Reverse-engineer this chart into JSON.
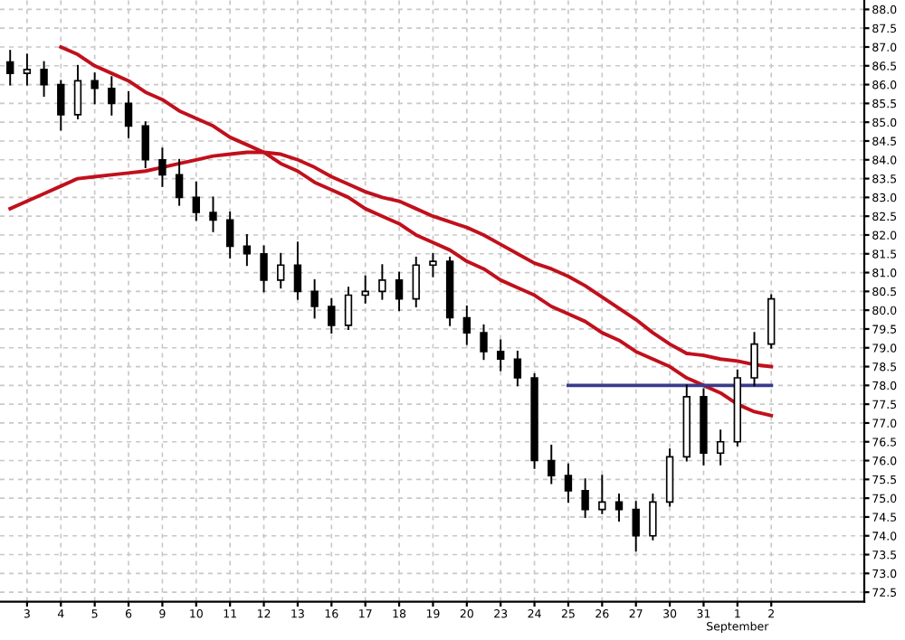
{
  "chart_data": {
    "type": "candlestick",
    "categories": [
      null,
      "3",
      null,
      "4",
      null,
      "5",
      null,
      "6",
      null,
      "9",
      null,
      "10",
      null,
      "11",
      null,
      "12",
      null,
      "13",
      null,
      "16",
      null,
      "17",
      null,
      "18",
      null,
      "19",
      null,
      "20",
      null,
      "23",
      null,
      "24",
      null,
      "25",
      null,
      "26",
      null,
      "27",
      null,
      "30",
      null,
      "31",
      null,
      "1\nSeptember",
      null,
      "2"
    ],
    "ohlc": [
      [
        86.6,
        86.9,
        86.0,
        86.3
      ],
      [
        86.3,
        86.8,
        86.0,
        86.4
      ],
      [
        86.4,
        86.6,
        85.7,
        86.0
      ],
      [
        86.0,
        86.1,
        84.8,
        85.2
      ],
      [
        85.2,
        86.5,
        85.1,
        86.1
      ],
      [
        86.1,
        86.3,
        85.5,
        85.9
      ],
      [
        85.9,
        86.2,
        85.2,
        85.5
      ],
      [
        85.5,
        85.8,
        84.6,
        84.9
      ],
      [
        84.9,
        85.0,
        83.8,
        84.0
      ],
      [
        84.0,
        84.3,
        83.3,
        83.6
      ],
      [
        83.6,
        84.0,
        82.8,
        83.0
      ],
      [
        83.0,
        83.4,
        82.4,
        82.6
      ],
      [
        82.6,
        83.0,
        82.1,
        82.4
      ],
      [
        82.4,
        82.6,
        81.4,
        81.7
      ],
      [
        81.7,
        82.0,
        81.2,
        81.5
      ],
      [
        81.5,
        81.7,
        80.5,
        80.8
      ],
      [
        80.8,
        81.5,
        80.6,
        81.2
      ],
      [
        81.2,
        81.8,
        80.3,
        80.5
      ],
      [
        80.5,
        80.8,
        79.8,
        80.1
      ],
      [
        80.1,
        80.3,
        79.4,
        79.6
      ],
      [
        79.6,
        80.6,
        79.5,
        80.4
      ],
      [
        80.4,
        80.9,
        80.2,
        80.5
      ],
      [
        80.5,
        81.2,
        80.3,
        80.8
      ],
      [
        80.8,
        81.0,
        80.0,
        80.3
      ],
      [
        80.3,
        81.4,
        80.1,
        81.2
      ],
      [
        81.2,
        81.5,
        80.9,
        81.3
      ],
      [
        81.3,
        81.4,
        79.6,
        79.8
      ],
      [
        79.8,
        80.1,
        79.1,
        79.4
      ],
      [
        79.4,
        79.6,
        78.7,
        78.9
      ],
      [
        78.9,
        79.2,
        78.4,
        78.7
      ],
      [
        78.7,
        78.9,
        78.0,
        78.2
      ],
      [
        78.2,
        78.3,
        75.8,
        76.0
      ],
      [
        76.0,
        76.4,
        75.4,
        75.6
      ],
      [
        75.6,
        75.9,
        74.9,
        75.2
      ],
      [
        75.2,
        75.5,
        74.5,
        74.7
      ],
      [
        74.7,
        75.6,
        74.6,
        74.9
      ],
      [
        74.9,
        75.1,
        74.4,
        74.7
      ],
      [
        74.7,
        74.9,
        73.6,
        74.0
      ],
      [
        74.0,
        75.1,
        73.9,
        74.9
      ],
      [
        74.9,
        76.3,
        74.8,
        76.1
      ],
      [
        76.1,
        78.0,
        76.0,
        77.7
      ],
      [
        77.7,
        77.9,
        75.9,
        76.2
      ],
      [
        76.2,
        76.8,
        75.9,
        76.5
      ],
      [
        76.5,
        78.4,
        76.4,
        78.2
      ],
      [
        78.2,
        79.4,
        78.0,
        79.1
      ],
      [
        79.1,
        80.4,
        79.0,
        80.3
      ]
    ],
    "series": [
      {
        "type": "line",
        "color": "#c0101c",
        "values": [
          82.7,
          82.9,
          83.1,
          83.3,
          83.5,
          83.55,
          83.6,
          83.65,
          83.7,
          83.8,
          83.9,
          84.0,
          84.1,
          84.15,
          84.2,
          84.2,
          84.15,
          84.0,
          83.8,
          83.55,
          83.35,
          83.15,
          83.0,
          82.9,
          82.7,
          82.5,
          82.35,
          82.2,
          82.0,
          81.75,
          81.5,
          81.25,
          81.1,
          80.9,
          80.65,
          80.35,
          80.05,
          79.75,
          79.4,
          79.1,
          78.85,
          78.8,
          78.7,
          78.65,
          78.55,
          78.5
        ]
      },
      {
        "type": "line",
        "color": "#c0101c",
        "values": [
          null,
          null,
          null,
          87.0,
          86.8,
          86.5,
          86.3,
          86.1,
          85.8,
          85.6,
          85.3,
          85.1,
          84.9,
          84.6,
          84.4,
          84.2,
          83.9,
          83.7,
          83.4,
          83.2,
          83.0,
          82.7,
          82.5,
          82.3,
          82.0,
          81.8,
          81.6,
          81.3,
          81.1,
          80.8,
          80.6,
          80.4,
          80.1,
          79.9,
          79.7,
          79.4,
          79.2,
          78.9,
          78.7,
          78.5,
          78.2,
          78.0,
          77.8,
          77.5,
          77.3,
          77.2
        ]
      },
      {
        "type": "line",
        "color": "#3a3a8c",
        "values": [
          null,
          null,
          null,
          null,
          null,
          null,
          null,
          null,
          null,
          null,
          null,
          null,
          null,
          null,
          null,
          null,
          null,
          null,
          null,
          null,
          null,
          null,
          null,
          null,
          null,
          null,
          null,
          null,
          null,
          null,
          null,
          null,
          null,
          78.0,
          78.0,
          78.0,
          78.0,
          78.0,
          78.0,
          78.0,
          78.0,
          78.0,
          78.0,
          78.0,
          78.0,
          78.0
        ]
      }
    ],
    "ylim": [
      72.25,
      88.25
    ],
    "yticks": [
      {
        "value": 72.5,
        "label": "72.5"
      },
      {
        "value": 73,
        "label": "73.0"
      },
      {
        "value": 73.5,
        "label": "73.5"
      },
      {
        "value": 74,
        "label": "74.0"
      },
      {
        "value": 74.5,
        "label": "74.5"
      },
      {
        "value": 75,
        "label": "75.0"
      },
      {
        "value": 75.5,
        "label": "75.5"
      },
      {
        "value": 76,
        "label": "76.0"
      },
      {
        "value": 76.5,
        "label": "76.5"
      },
      {
        "value": 77,
        "label": "77.0"
      },
      {
        "value": 77.5,
        "label": "77.5"
      },
      {
        "value": 78,
        "label": "78.0"
      },
      {
        "value": 78.5,
        "label": "78.5"
      },
      {
        "value": 79,
        "label": "79.0"
      },
      {
        "value": 79.5,
        "label": "79.5"
      },
      {
        "value": 80,
        "label": "80.0"
      },
      {
        "value": 80.5,
        "label": "80.5"
      },
      {
        "value": 81,
        "label": "81.0"
      },
      {
        "value": 81.5,
        "label": "81.5"
      },
      {
        "value": 82,
        "label": "82.0"
      },
      {
        "value": 82.5,
        "label": "82.5"
      },
      {
        "value": 83,
        "label": "83.0"
      },
      {
        "value": 83.5,
        "label": "83.5"
      },
      {
        "value": 84,
        "label": "84.0"
      },
      {
        "value": 84.5,
        "label": "84.5"
      },
      {
        "value": 85,
        "label": "85.0"
      },
      {
        "value": 85.5,
        "label": "85.5"
      },
      {
        "value": 86,
        "label": "86.0"
      },
      {
        "value": 86.5,
        "label": "86.5"
      },
      {
        "value": 87,
        "label": "87.0"
      },
      {
        "value": 87.5,
        "label": "87.5"
      },
      {
        "value": 88,
        "label": "88.0"
      }
    ],
    "grid": true
  }
}
